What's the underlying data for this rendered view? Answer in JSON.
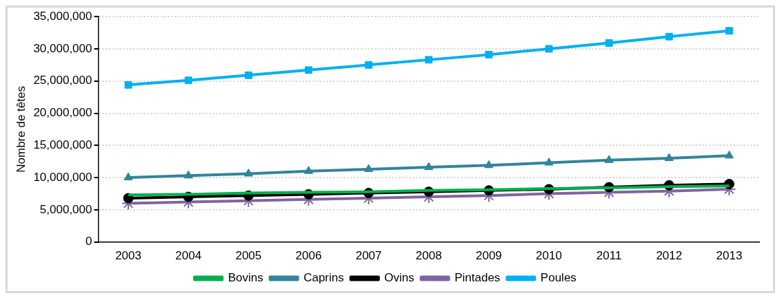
{
  "chart_data": {
    "type": "line",
    "ylabel": "Nombre de têtes",
    "categories": [
      "2003",
      "2004",
      "2005",
      "2006",
      "2007",
      "2008",
      "2009",
      "2010",
      "2011",
      "2012",
      "2013"
    ],
    "series": [
      {
        "name": "Bovins",
        "color": "#00b050",
        "marker": "none",
        "values": [
          7300000,
          7400000,
          7600000,
          7700000,
          7800000,
          8000000,
          8100000,
          8300000,
          8400000,
          8600000,
          8700000
        ]
      },
      {
        "name": "Caprins",
        "color": "#31849b",
        "marker": "triangle",
        "values": [
          10000000,
          10300000,
          10600000,
          11000000,
          11300000,
          11600000,
          11900000,
          12300000,
          12700000,
          13000000,
          13400000
        ]
      },
      {
        "name": "Ovins",
        "color": "#000000",
        "marker": "circle",
        "values": [
          6800000,
          7000000,
          7200000,
          7400000,
          7600000,
          7800000,
          8000000,
          8200000,
          8500000,
          8800000,
          9000000
        ]
      },
      {
        "name": "Pintades",
        "color": "#8064a2",
        "marker": "cross",
        "values": [
          6000000,
          6200000,
          6400000,
          6600000,
          6800000,
          7000000,
          7200000,
          7500000,
          7700000,
          7900000,
          8200000
        ]
      },
      {
        "name": "Poules",
        "color": "#00b0f0",
        "marker": "square",
        "values": [
          24400000,
          25100000,
          25900000,
          26700000,
          27500000,
          28300000,
          29100000,
          30000000,
          30900000,
          31900000,
          32800000
        ]
      }
    ],
    "ylim": [
      0,
      35000000
    ],
    "yticks": [
      0,
      {
        "value": 5000000,
        "label": "5,000,000"
      },
      {
        "value": 10000000,
        "label": "10,000,000"
      },
      {
        "value": 15000000,
        "label": "15,000,000"
      },
      {
        "value": 20000000,
        "label": "20,000,000"
      },
      {
        "value": 25000000,
        "label": "25,000,000"
      },
      {
        "value": 30000000,
        "label": "30,000,000"
      },
      {
        "value": 35000000,
        "label": "35,000,000"
      }
    ],
    "grid": "y",
    "legend": "bottom",
    "line_style": "solid"
  }
}
